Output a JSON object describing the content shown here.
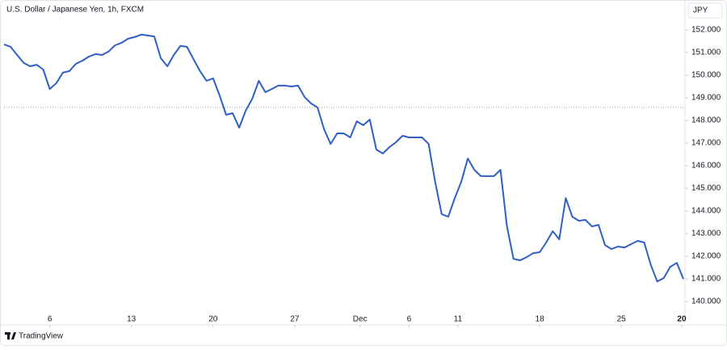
{
  "chart_data": {
    "type": "line",
    "title": "U.S. Dollar / Japanese Yen, 1h, FXCM",
    "currency": "JPY",
    "brand": "TradingView",
    "color": "#2f5fc4",
    "reference_line": 148.57,
    "grid": false,
    "xlim": [
      0.2,
      41.9
    ],
    "ylim": [
      139.04,
      153.14
    ],
    "xticks": [
      {
        "value": 3,
        "label": "6"
      },
      {
        "value": 8,
        "label": "13"
      },
      {
        "value": 13,
        "label": "20"
      },
      {
        "value": 18,
        "label": "27"
      },
      {
        "value": 22,
        "label": "Dec"
      },
      {
        "value": 25,
        "label": "6"
      },
      {
        "value": 28,
        "label": "11"
      },
      {
        "value": 33,
        "label": "18"
      },
      {
        "value": 38,
        "label": "25"
      },
      {
        "value": 41.7,
        "label": "20"
      }
    ],
    "yticks": [
      {
        "value": 140,
        "label": "140.000"
      },
      {
        "value": 141,
        "label": "141.000"
      },
      {
        "value": 142,
        "label": "142.000"
      },
      {
        "value": 143,
        "label": "143.000"
      },
      {
        "value": 144,
        "label": "144.000"
      },
      {
        "value": 145,
        "label": "145.000"
      },
      {
        "value": 146,
        "label": "146.000"
      },
      {
        "value": 147,
        "label": "147.000"
      },
      {
        "value": 148,
        "label": "148.000"
      },
      {
        "value": 149,
        "label": "149.000"
      },
      {
        "value": 150,
        "label": "150.000"
      },
      {
        "value": 151,
        "label": "151.000"
      },
      {
        "value": 152,
        "label": "152.000"
      }
    ],
    "x": [
      0.2,
      0.6,
      1.0,
      1.4,
      1.8,
      2.2,
      2.6,
      3.0,
      3.4,
      3.8,
      4.2,
      4.6,
      5.0,
      5.4,
      5.8,
      6.2,
      6.6,
      7.0,
      7.4,
      7.8,
      8.2,
      8.6,
      9.0,
      9.4,
      9.8,
      10.2,
      10.6,
      11.0,
      11.4,
      11.8,
      12.2,
      12.6,
      13.0,
      13.4,
      13.8,
      14.2,
      14.6,
      15.0,
      15.4,
      15.8,
      16.2,
      16.6,
      17.0,
      17.4,
      17.8,
      18.2,
      18.6,
      19.0,
      19.4,
      19.8,
      20.2,
      20.6,
      21.0,
      21.4,
      21.8,
      22.2,
      22.6,
      23.0,
      23.4,
      23.8,
      24.2,
      24.6,
      25.0,
      25.4,
      25.8,
      26.2,
      26.6,
      27.0,
      27.4,
      27.8,
      28.2,
      28.6,
      29.0,
      29.4,
      29.8,
      30.2,
      30.6,
      31.0,
      31.4,
      31.8,
      32.2,
      32.6,
      33.0,
      33.4,
      33.8,
      34.2,
      34.6,
      35.0,
      35.4,
      35.8,
      36.2,
      36.6,
      37.0,
      37.4,
      37.8,
      38.2,
      38.6,
      39.0,
      39.4,
      39.8,
      40.2,
      40.6,
      41.0,
      41.4,
      41.8
    ],
    "values": [
      151.36,
      151.25,
      150.89,
      150.54,
      150.39,
      150.46,
      150.25,
      149.39,
      149.64,
      150.11,
      150.18,
      150.5,
      150.64,
      150.82,
      150.93,
      150.89,
      151.04,
      151.32,
      151.43,
      151.61,
      151.68,
      151.79,
      151.75,
      151.71,
      150.75,
      150.39,
      150.89,
      151.29,
      151.25,
      150.71,
      150.18,
      149.75,
      149.86,
      149.11,
      148.25,
      148.32,
      147.68,
      148.43,
      148.96,
      149.75,
      149.25,
      149.39,
      149.54,
      149.54,
      149.5,
      149.54,
      149.04,
      148.75,
      148.57,
      147.61,
      146.96,
      147.43,
      147.43,
      147.25,
      147.96,
      147.79,
      148.04,
      146.71,
      146.54,
      146.82,
      147.04,
      147.32,
      147.25,
      147.25,
      147.25,
      146.96,
      145.29,
      143.86,
      143.75,
      144.57,
      145.29,
      146.32,
      145.82,
      145.54,
      145.54,
      145.54,
      145.82,
      143.32,
      141.89,
      141.82,
      141.96,
      142.14,
      142.18,
      142.61,
      143.11,
      142.75,
      144.57,
      143.75,
      143.57,
      143.61,
      143.32,
      143.39,
      142.5,
      142.32,
      142.43,
      142.39,
      142.54,
      142.68,
      142.61,
      141.64,
      140.89,
      141.04,
      141.54,
      141.71,
      141.0
    ]
  }
}
